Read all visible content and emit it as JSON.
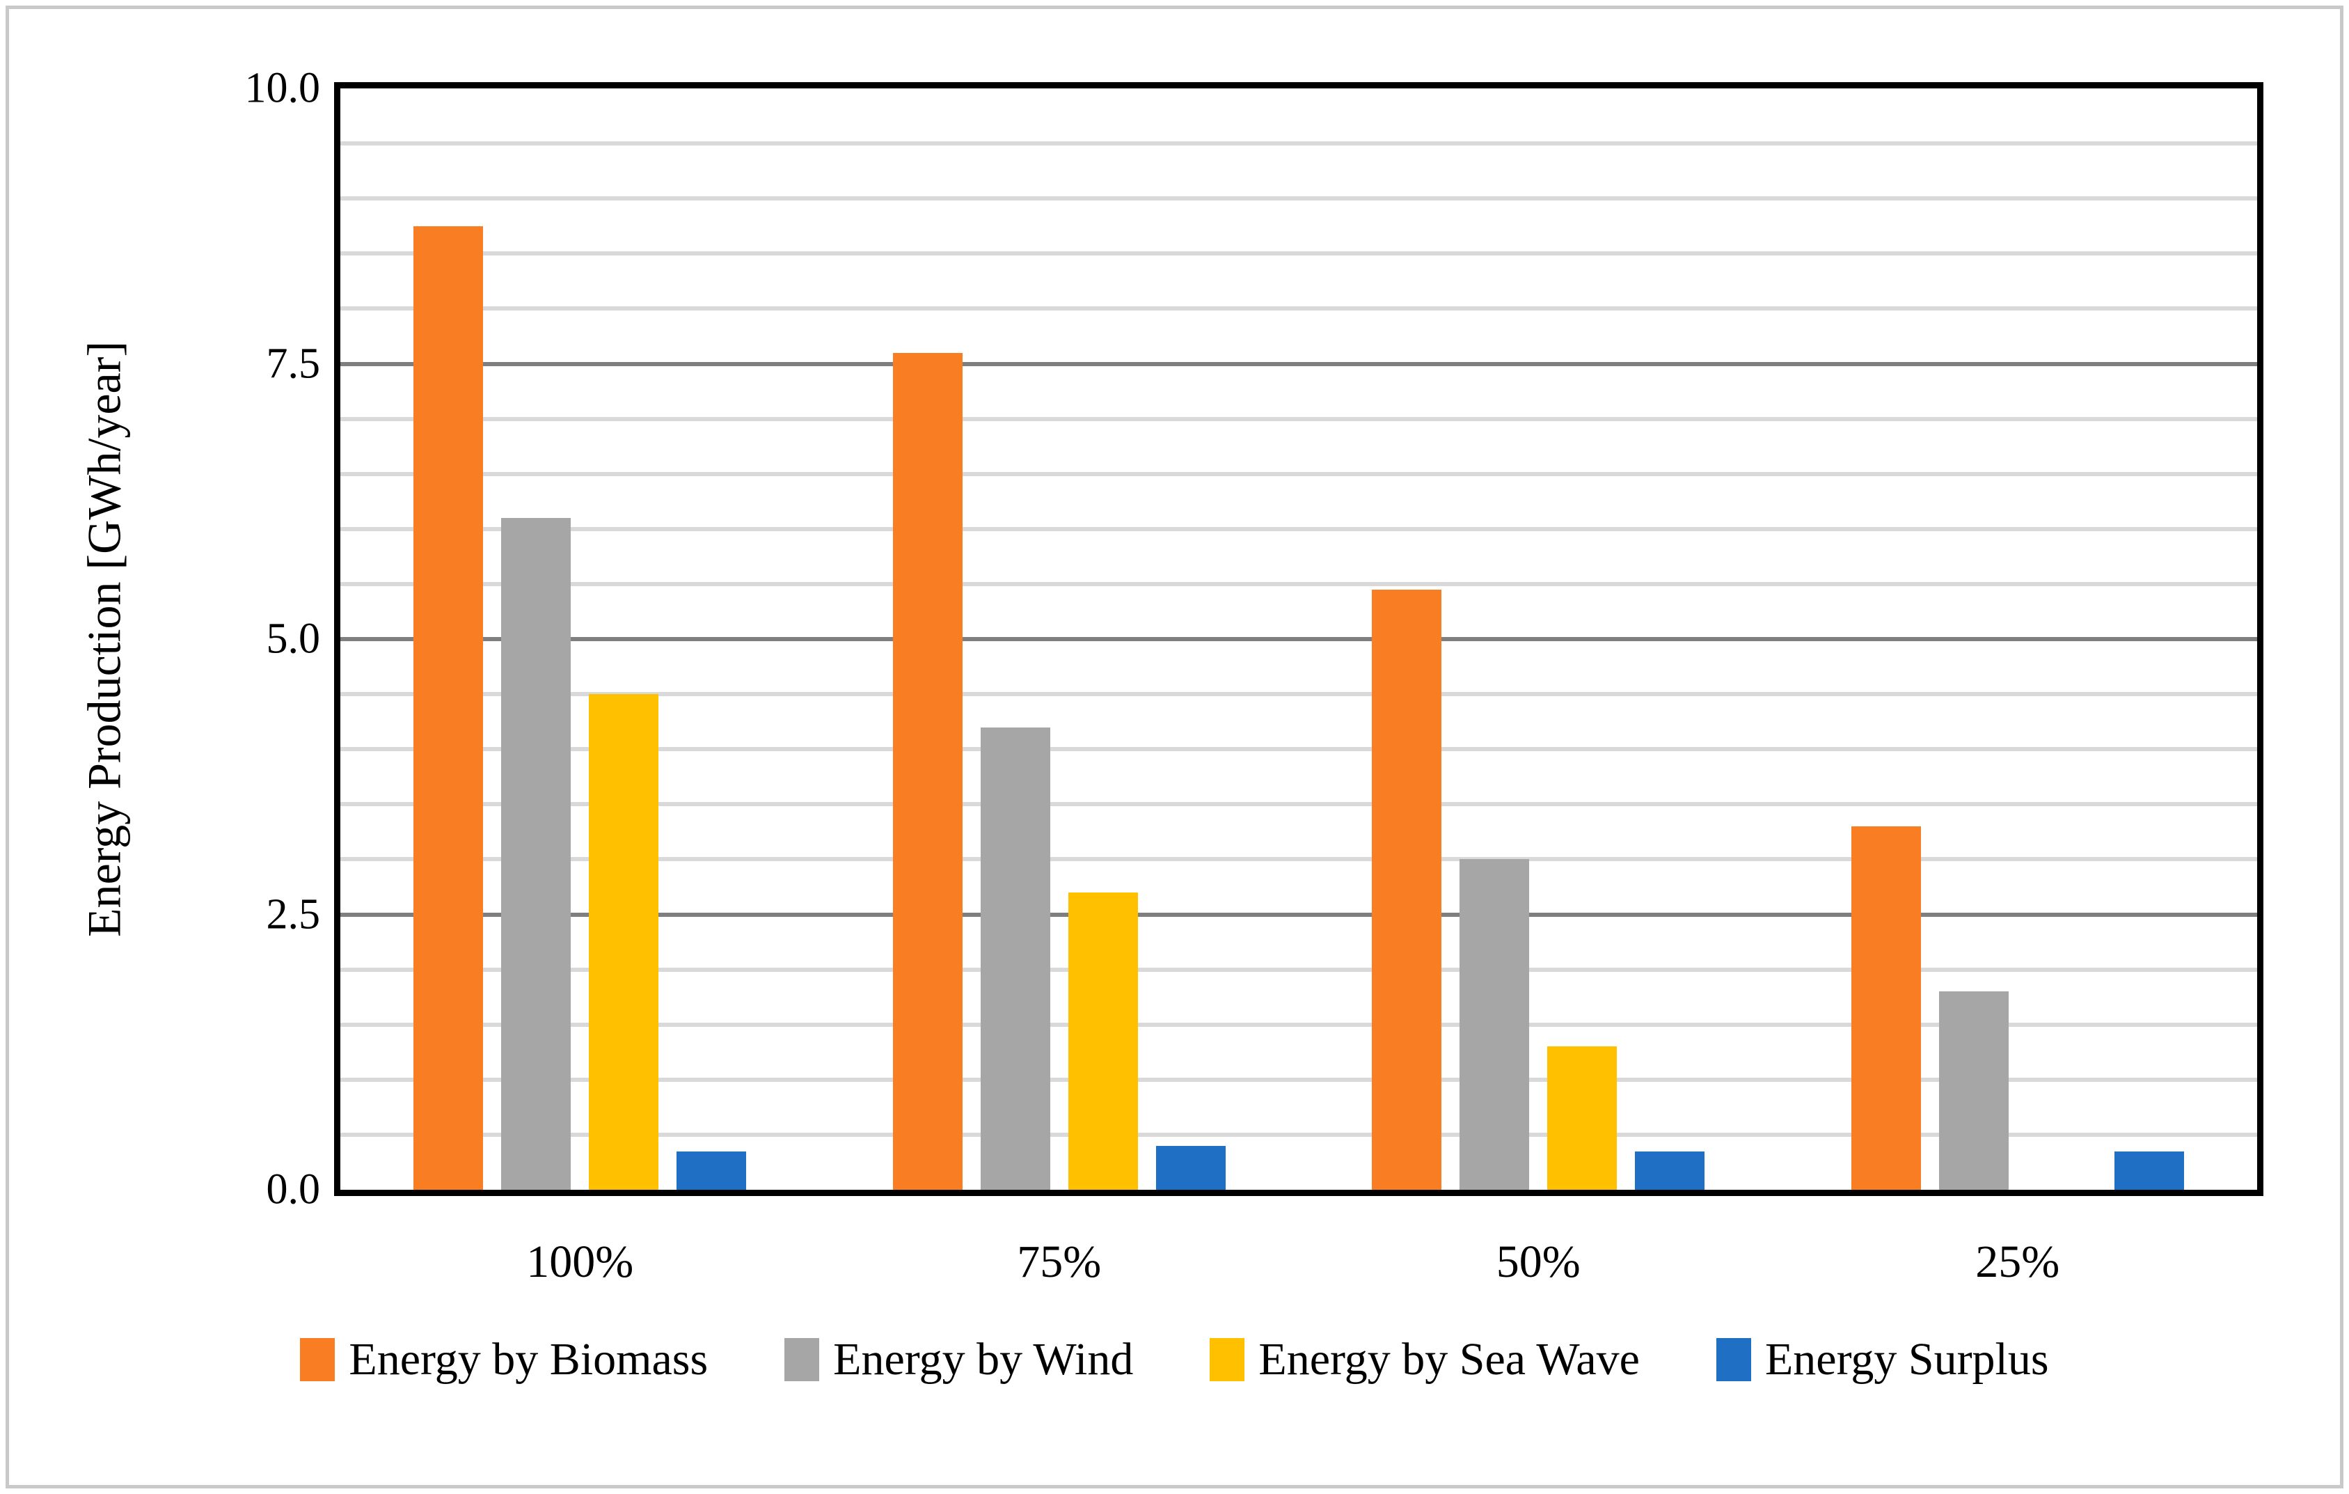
{
  "chart_data": {
    "type": "bar",
    "title": "",
    "categories": [
      "100%",
      "75%",
      "50%",
      "25%"
    ],
    "series": [
      {
        "name": "Energy by Biomass",
        "color": "#F97D23",
        "values": [
          8.75,
          7.6,
          5.45,
          3.3
        ]
      },
      {
        "name": "Energy by Wind",
        "color": "#A6A6A6",
        "values": [
          6.1,
          4.2,
          3.0,
          1.8
        ]
      },
      {
        "name": "Energy by Sea Wave",
        "color": "#FFC000",
        "values": [
          4.5,
          2.7,
          1.3,
          0
        ]
      },
      {
        "name": "Energy Surplus",
        "color": "#1F6FC4",
        "values": [
          0.35,
          0.4,
          0.35,
          0.35
        ]
      }
    ],
    "ylabel": "Energy Production [GWh/year]",
    "xlabel": "",
    "ylim": [
      0,
      10
    ],
    "yticks": {
      "labels": [
        "0.0",
        "2.5",
        "5.0",
        "7.5",
        "10.0"
      ],
      "values": [
        0,
        2.5,
        5,
        7.5,
        10
      ]
    },
    "minor_grid_step": 0.5,
    "major_grid_step": 2.5,
    "grid": true,
    "legend_position": "bottom"
  },
  "style": {
    "grid_minor_color": "#D9D9D9",
    "grid_major_color": "#7F7F7F",
    "axis_color": "#000000",
    "outer_frame_color": "#C9C9C9"
  }
}
